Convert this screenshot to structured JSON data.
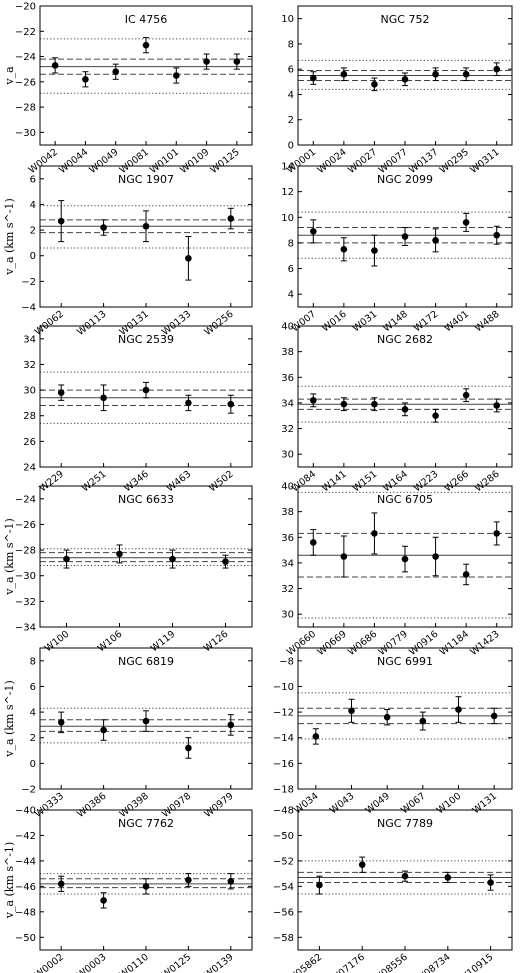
{
  "chart_data": [
    {
      "type": "scatter",
      "title": "IC 4756",
      "ylabel": "v_a",
      "ylim": [
        -31,
        -20
      ],
      "yticks": [
        -30,
        -28,
        -26,
        -24,
        -22,
        -20
      ],
      "categories": [
        "W0042",
        "W0044",
        "W0049",
        "W0081",
        "W0101",
        "W0109",
        "W0125"
      ],
      "values": [
        -24.7,
        -25.8,
        -25.2,
        -23.1,
        -25.5,
        -24.4,
        -24.4
      ],
      "errors": [
        0.6,
        0.6,
        0.6,
        0.6,
        0.6,
        0.6,
        0.6
      ],
      "mean": -24.8,
      "sigma": [
        -25.4,
        -24.2
      ],
      "dotted": [
        -26.9,
        -22.6
      ]
    },
    {
      "type": "scatter",
      "title": "NGC 752",
      "ylabel": "",
      "ylim": [
        0,
        11
      ],
      "yticks": [
        0,
        2,
        4,
        6,
        8,
        10
      ],
      "categories": [
        "W0001",
        "W0024",
        "W0027",
        "W0077",
        "W0137",
        "W0295",
        "W0311"
      ],
      "values": [
        5.3,
        5.6,
        4.8,
        5.2,
        5.6,
        5.6,
        6.0
      ],
      "errors": [
        0.5,
        0.5,
        0.5,
        0.5,
        0.5,
        0.5,
        0.5
      ],
      "mean": 5.5,
      "sigma": [
        5.1,
        5.9
      ],
      "dotted": [
        4.4,
        6.7
      ]
    },
    {
      "type": "scatter",
      "title": "NGC 1907",
      "ylabel": "v_a (km s^-1)",
      "ylim": [
        -4,
        7
      ],
      "yticks": [
        -4,
        -2,
        0,
        2,
        4,
        6
      ],
      "categories": [
        "W0062",
        "W0113",
        "W0131",
        "W0133",
        "W0256"
      ],
      "values": [
        2.7,
        2.2,
        2.3,
        -0.2,
        2.9
      ],
      "errors": [
        1.6,
        0.6,
        1.2,
        1.7,
        0.8
      ],
      "mean": 2.3,
      "sigma": [
        1.8,
        2.8
      ],
      "dotted": [
        0.6,
        3.9
      ]
    },
    {
      "type": "scatter",
      "title": "NGC 2099",
      "ylabel": "",
      "ylim": [
        3,
        14
      ],
      "yticks": [
        4,
        6,
        8,
        10,
        12,
        14
      ],
      "categories": [
        "W007",
        "W016",
        "W031",
        "W148",
        "W172",
        "W401",
        "W488"
      ],
      "values": [
        8.9,
        7.5,
        7.4,
        8.5,
        8.2,
        9.6,
        8.6
      ],
      "errors": [
        0.9,
        0.9,
        1.2,
        0.7,
        0.9,
        0.7,
        0.7
      ],
      "mean": 8.6,
      "sigma": [
        8.0,
        9.2
      ],
      "dotted": [
        6.8,
        10.4
      ]
    },
    {
      "type": "scatter",
      "title": "NGC 2539",
      "ylabel": "",
      "ylim": [
        24,
        35
      ],
      "yticks": [
        24,
        26,
        28,
        30,
        32,
        34
      ],
      "categories": [
        "W229",
        "W251",
        "W346",
        "W463",
        "W502"
      ],
      "values": [
        29.8,
        29.4,
        30.0,
        29.0,
        28.9
      ],
      "errors": [
        0.6,
        1.0,
        0.6,
        0.6,
        0.7
      ],
      "mean": 29.4,
      "sigma": [
        28.8,
        30.0
      ],
      "dotted": [
        27.4,
        31.4
      ]
    },
    {
      "type": "scatter",
      "title": "NGC 2682",
      "ylabel": "",
      "ylim": [
        29,
        40
      ],
      "yticks": [
        30,
        32,
        34,
        36,
        38,
        40
      ],
      "categories": [
        "W084",
        "W141",
        "W151",
        "W164",
        "W223",
        "W266",
        "W286"
      ],
      "values": [
        34.2,
        33.9,
        33.9,
        33.5,
        33.0,
        34.6,
        33.8
      ],
      "errors": [
        0.5,
        0.5,
        0.5,
        0.5,
        0.5,
        0.5,
        0.5
      ],
      "mean": 33.9,
      "sigma": [
        33.5,
        34.3
      ],
      "dotted": [
        32.5,
        35.3
      ]
    },
    {
      "type": "scatter",
      "title": "NGC 6633",
      "ylabel": "v_a (km s^-1)",
      "ylim": [
        -34,
        -23
      ],
      "yticks": [
        -34,
        -32,
        -30,
        -28,
        -26,
        -24
      ],
      "categories": [
        "W100",
        "W106",
        "W119",
        "W126"
      ],
      "values": [
        -28.7,
        -28.3,
        -28.7,
        -28.9
      ],
      "errors": [
        0.7,
        0.7,
        0.7,
        0.5
      ],
      "mean": -28.6,
      "sigma": [
        -28.9,
        -28.2
      ],
      "dotted": [
        -29.2,
        -27.9
      ]
    },
    {
      "type": "scatter",
      "title": "NGC 6705",
      "ylabel": "",
      "ylim": [
        29,
        40
      ],
      "yticks": [
        30,
        32,
        34,
        36,
        38,
        40
      ],
      "categories": [
        "W0660",
        "W0669",
        "W0686",
        "W0779",
        "W0916",
        "W1184",
        "W1423"
      ],
      "values": [
        35.6,
        34.5,
        36.3,
        34.3,
        34.5,
        33.1,
        36.3
      ],
      "errors": [
        1.0,
        1.6,
        1.6,
        1.0,
        1.5,
        0.8,
        0.9
      ],
      "mean": 34.6,
      "sigma": [
        32.9,
        36.3
      ],
      "dotted": [
        29.7,
        39.5
      ]
    },
    {
      "type": "scatter",
      "title": "NGC 6819",
      "ylabel": "v_a (km s^-1)",
      "ylim": [
        -2,
        9
      ],
      "yticks": [
        -2,
        0,
        2,
        4,
        6,
        8
      ],
      "categories": [
        "W0333",
        "W0386",
        "W0398",
        "W0978",
        "W0979"
      ],
      "values": [
        3.2,
        2.6,
        3.3,
        1.2,
        3.0
      ],
      "errors": [
        0.8,
        0.8,
        0.8,
        0.8,
        0.8
      ],
      "mean": 2.9,
      "sigma": [
        2.5,
        3.4
      ],
      "dotted": [
        1.6,
        4.3
      ]
    },
    {
      "type": "scatter",
      "title": "NGC 6991",
      "ylabel": "",
      "ylim": [
        -18,
        -7
      ],
      "yticks": [
        -18,
        -16,
        -14,
        -12,
        -10,
        -8
      ],
      "categories": [
        "W034",
        "W043",
        "W049",
        "W067",
        "W100",
        "W131"
      ],
      "values": [
        -13.9,
        -11.9,
        -12.4,
        -12.7,
        -11.8,
        -12.3
      ],
      "errors": [
        0.6,
        0.9,
        0.6,
        0.7,
        1.0,
        0.6
      ],
      "mean": -12.3,
      "sigma": [
        -12.9,
        -11.7
      ],
      "dotted": [
        -14.1,
        -10.5
      ]
    },
    {
      "type": "scatter",
      "title": "NGC 7762",
      "ylabel": "v_a (km s^-1)",
      "ylim": [
        -51,
        -40
      ],
      "yticks": [
        -50,
        -48,
        -46,
        -44,
        -42,
        -40
      ],
      "categories": [
        "W0002",
        "W0003",
        "W0110",
        "W0125",
        "W0139"
      ],
      "values": [
        -45.8,
        -47.1,
        -46.0,
        -45.5,
        -45.6
      ],
      "errors": [
        0.6,
        0.6,
        0.6,
        0.5,
        0.6
      ],
      "mean": -45.8,
      "sigma": [
        -46.1,
        -45.4
      ],
      "dotted": [
        -46.6,
        -45.0
      ]
    },
    {
      "type": "scatter",
      "title": "NGC 7789",
      "ylabel": "",
      "ylim": [
        -59,
        -48
      ],
      "yticks": [
        -58,
        -56,
        -54,
        -52,
        -50,
        -48
      ],
      "categories": [
        "W05862",
        "W07176",
        "W08556",
        "W08734",
        "W10915"
      ],
      "values": [
        -53.9,
        -52.3,
        -53.2,
        -53.3,
        -53.7
      ],
      "errors": [
        0.7,
        0.6,
        0.4,
        0.4,
        0.6
      ],
      "mean": -53.3,
      "sigma": [
        -53.7,
        -52.9
      ],
      "dotted": [
        -54.6,
        -52.0
      ]
    }
  ]
}
